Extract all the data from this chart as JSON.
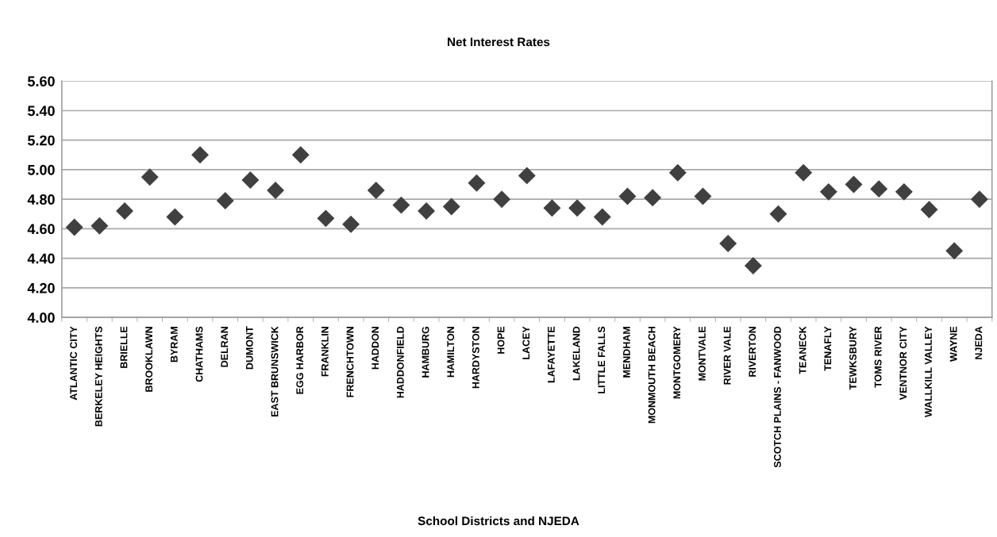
{
  "chart_data": {
    "type": "scatter",
    "title": "Net Interest Rates",
    "xlabel": "School Districts and NJEDA",
    "categories": [
      "ATLANTIC CITY",
      "BERKELEY HEIGHTS",
      "BRIELLE",
      "BROOKLAWN",
      "BYRAM",
      "CHATHAMS",
      "DELRAN",
      "DUMONT",
      "EAST BRUNSWICK",
      "EGG HARBOR",
      "FRANKLIN",
      "FRENCHTOWN",
      "HADDON",
      "HADDONFIELD",
      "HAMBURG",
      "HAMILTON",
      "HARDYSTON",
      "HOPE",
      "LACEY",
      "LAFAYETTE",
      "LAKELAND",
      "LITTLE FALLS",
      "MENDHAM",
      "MONMOUTH BEACH",
      "MONTGOMERY",
      "MONTVALE",
      "RIVER VALE",
      "RIVERTON",
      "SCOTCH PLAINS - FANWOOD",
      "TEANECK",
      "TENAFLY",
      "TEWKSBURY",
      "TOMS RIVER",
      "VENTNOR CITY",
      "WALLKILL VALLEY",
      "WAYNE",
      "NJEDA"
    ],
    "series": [
      {
        "color": "#404040",
        "values": [
          4.61,
          4.62,
          4.72,
          4.95,
          4.68,
          5.1,
          4.79,
          4.93,
          4.86,
          5.1,
          4.67,
          4.63,
          4.86,
          4.76,
          4.72,
          4.75,
          4.91,
          4.8,
          4.96,
          4.74,
          4.74,
          4.68,
          4.82,
          4.81,
          4.98,
          4.82,
          4.5,
          4.35,
          4.7,
          4.98,
          4.85,
          4.9,
          4.87,
          4.85,
          4.73,
          4.45,
          4.8
        ]
      }
    ],
    "ylim": [
      4.0,
      5.6
    ],
    "yticks": [
      {
        "value": 4.0,
        "label": "4.00"
      },
      {
        "value": 4.2,
        "label": "4.20"
      },
      {
        "value": 4.4,
        "label": "4.40"
      },
      {
        "value": 4.6,
        "label": "4.60"
      },
      {
        "value": 4.8,
        "label": "4.80"
      },
      {
        "value": 5.0,
        "label": "5.00"
      },
      {
        "value": 5.2,
        "label": "5.20"
      },
      {
        "value": 5.4,
        "label": "5.40"
      },
      {
        "value": 5.6,
        "label": "5.60"
      }
    ],
    "grid": "y",
    "marker": "diamond"
  }
}
